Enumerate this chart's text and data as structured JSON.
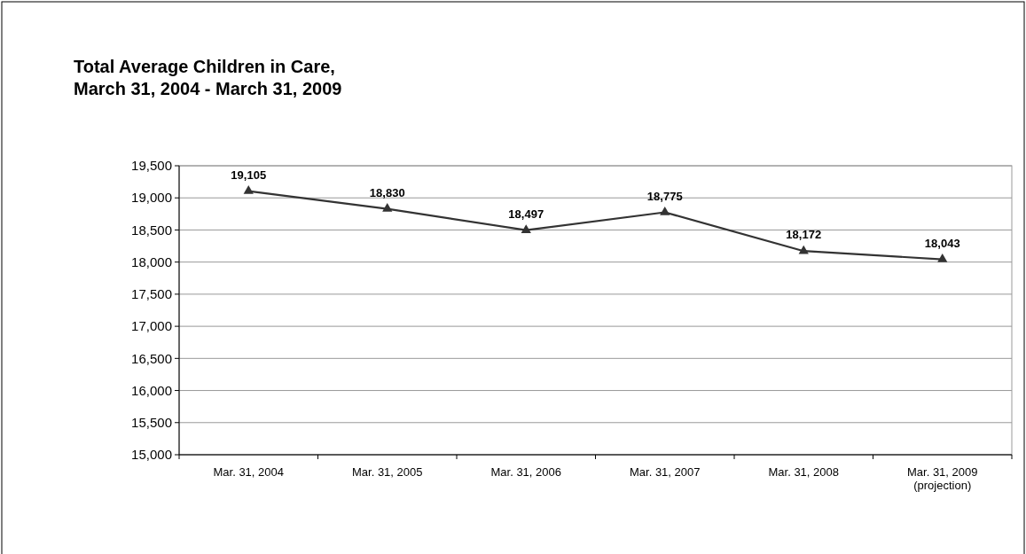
{
  "chart_data": {
    "type": "line",
    "title": "Total Average Children in Care,\nMarch 31, 2004 - March 31, 2009",
    "categories": [
      "Mar. 31, 2004",
      "Mar. 31, 2005",
      "Mar. 31, 2006",
      "Mar. 31, 2007",
      "Mar. 31, 2008",
      "Mar. 31, 2009\n(projection)"
    ],
    "series": [
      {
        "color": "#333333",
        "values": [
          19105,
          18830,
          18497,
          18775,
          18172,
          18043
        ],
        "value_labels": [
          "19,105",
          "18,830",
          "18,497",
          "18,775",
          "18,172",
          "18,043"
        ]
      }
    ],
    "ylim": [
      15000,
      19500
    ],
    "yticks": [
      {
        "value": 15000,
        "label": "15,000"
      },
      {
        "value": 15500,
        "label": "15,500"
      },
      {
        "value": 16000,
        "label": "16,000"
      },
      {
        "value": 16500,
        "label": "16,500"
      },
      {
        "value": 17000,
        "label": "17,000"
      },
      {
        "value": 17500,
        "label": "17,500"
      },
      {
        "value": 18000,
        "label": "18,000"
      },
      {
        "value": 18500,
        "label": "18,500"
      },
      {
        "value": 19000,
        "label": "19,000"
      },
      {
        "value": 19500,
        "label": "19,500"
      }
    ],
    "grid": "y",
    "marker": "triangle",
    "line_style": "solid"
  }
}
